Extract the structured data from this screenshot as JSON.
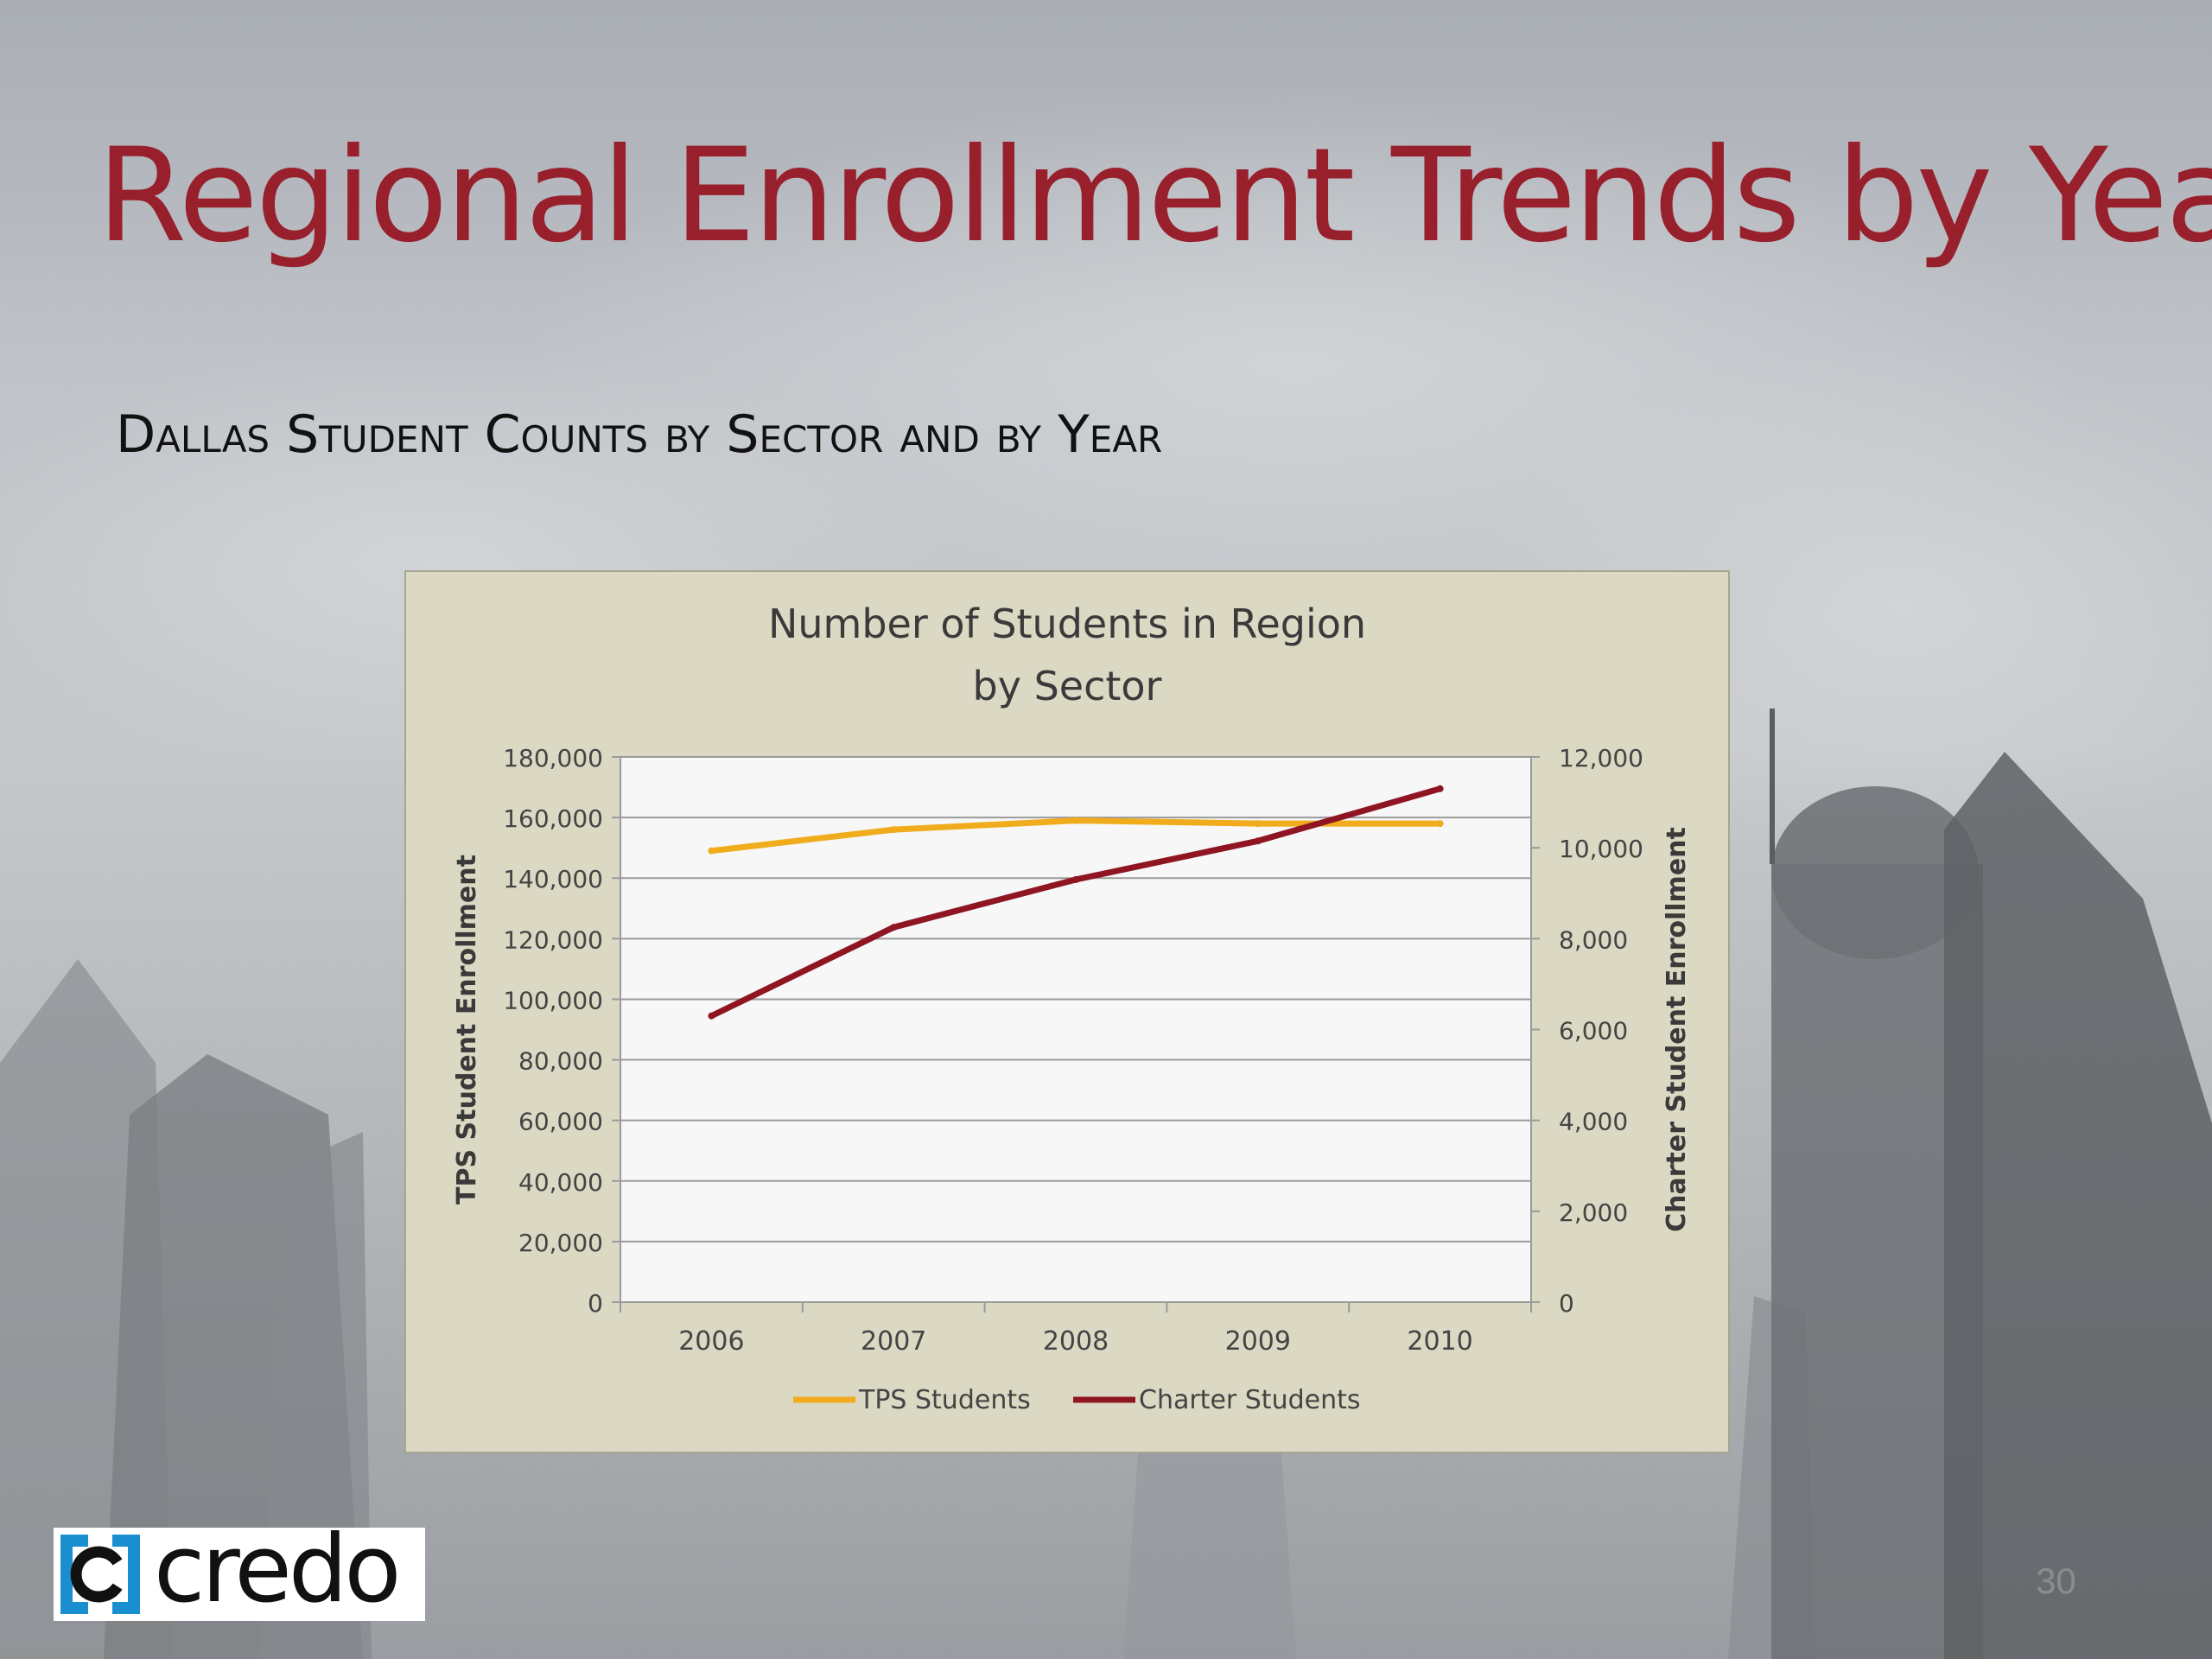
{
  "slide": {
    "title": "Regional Enrollment Trends by Year",
    "subtitle": "Dallas Student Counts by Sector and by Year",
    "page_number": "30",
    "logo_text": "credo"
  },
  "colors": {
    "title": "#98202c",
    "tps_line": "#f0ac1d",
    "charter_line": "#8f1523",
    "chart_bg": "#dbd9c3",
    "plot_bg": "#f7f7f7",
    "logo_blue": "#1a8fd0"
  },
  "chart_data": {
    "type": "line",
    "title_lines": [
      "Number of Students in Region",
      "by Sector"
    ],
    "categories": [
      "2006",
      "2007",
      "2008",
      "2009",
      "2010"
    ],
    "series": [
      {
        "name": "TPS Students",
        "axis": "left",
        "values": [
          149000,
          156000,
          159000,
          158000,
          158000
        ]
      },
      {
        "name": "Charter Students",
        "axis": "right",
        "values": [
          6300,
          8250,
          9300,
          10150,
          11300
        ]
      }
    ],
    "ylabel": "TPS Student Enrollment",
    "y2label": "Charter Student Enrollment",
    "ylim": [
      0,
      180000
    ],
    "y2lim": [
      0,
      12000
    ],
    "yticks": [
      "0",
      "20,000",
      "40,000",
      "60,000",
      "80,000",
      "100,000",
      "120,000",
      "140,000",
      "160,000",
      "180,000"
    ],
    "y2ticks": [
      "0",
      "2,000",
      "4,000",
      "6,000",
      "8,000",
      "10,000",
      "12,000"
    ],
    "grid": true,
    "legend": "bottom"
  }
}
